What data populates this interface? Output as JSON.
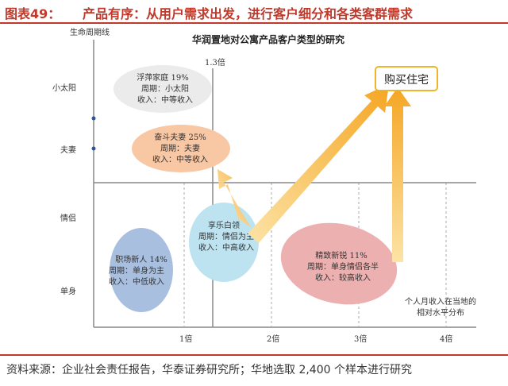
{
  "header": {
    "figure_label": "图表49：",
    "title": "产品有序：从用户需求出发，进行客户细分和各类客群需求"
  },
  "diagram": {
    "title": "华润置地对公寓产品客户类型的研究",
    "y_axis_title": "生命周期线",
    "x_axis_title_line1": "个人月收入在当地的",
    "x_axis_title_line2": "相对水平分布",
    "y_levels": [
      "小太阳",
      "夫妻",
      "情侣",
      "单身"
    ],
    "x_ticks": [
      "1倍",
      "2倍",
      "3倍",
      "4倍"
    ],
    "threshold_label": "1.3倍",
    "target_label": "购买住宅",
    "segments": [
      {
        "name": "浮萍家庭 19%",
        "period": "周期：小太阳",
        "income": "收入：中等收入",
        "color": "#ebebeb"
      },
      {
        "name": "奋斗夫妻 25%",
        "period": "周期：夫妻",
        "income": "收入：中等收入",
        "color": "#f8c7a4"
      },
      {
        "name": "享乐白领",
        "period": "周期：情侣为主",
        "income": "收入：中高收入",
        "color": "#bee3f0"
      },
      {
        "name": "职场新人 14%",
        "period": "周期：单身为主",
        "income": "收入：中低收入",
        "color": "#a9bfe0"
      },
      {
        "name": "精致新锐 11%",
        "period": "周期：单身情侣各半",
        "income": "收入：较高收入",
        "color": "#ecb0b0"
      }
    ],
    "colors": {
      "arrow": "#f5b93a",
      "axis": "#888888",
      "dot": "#2f5496",
      "target_border": "#f0b429"
    }
  },
  "footer": {
    "source": "资料来源：企业社会责任报告，华泰证券研究所；华地选取 2,400 个样本进行研究"
  }
}
